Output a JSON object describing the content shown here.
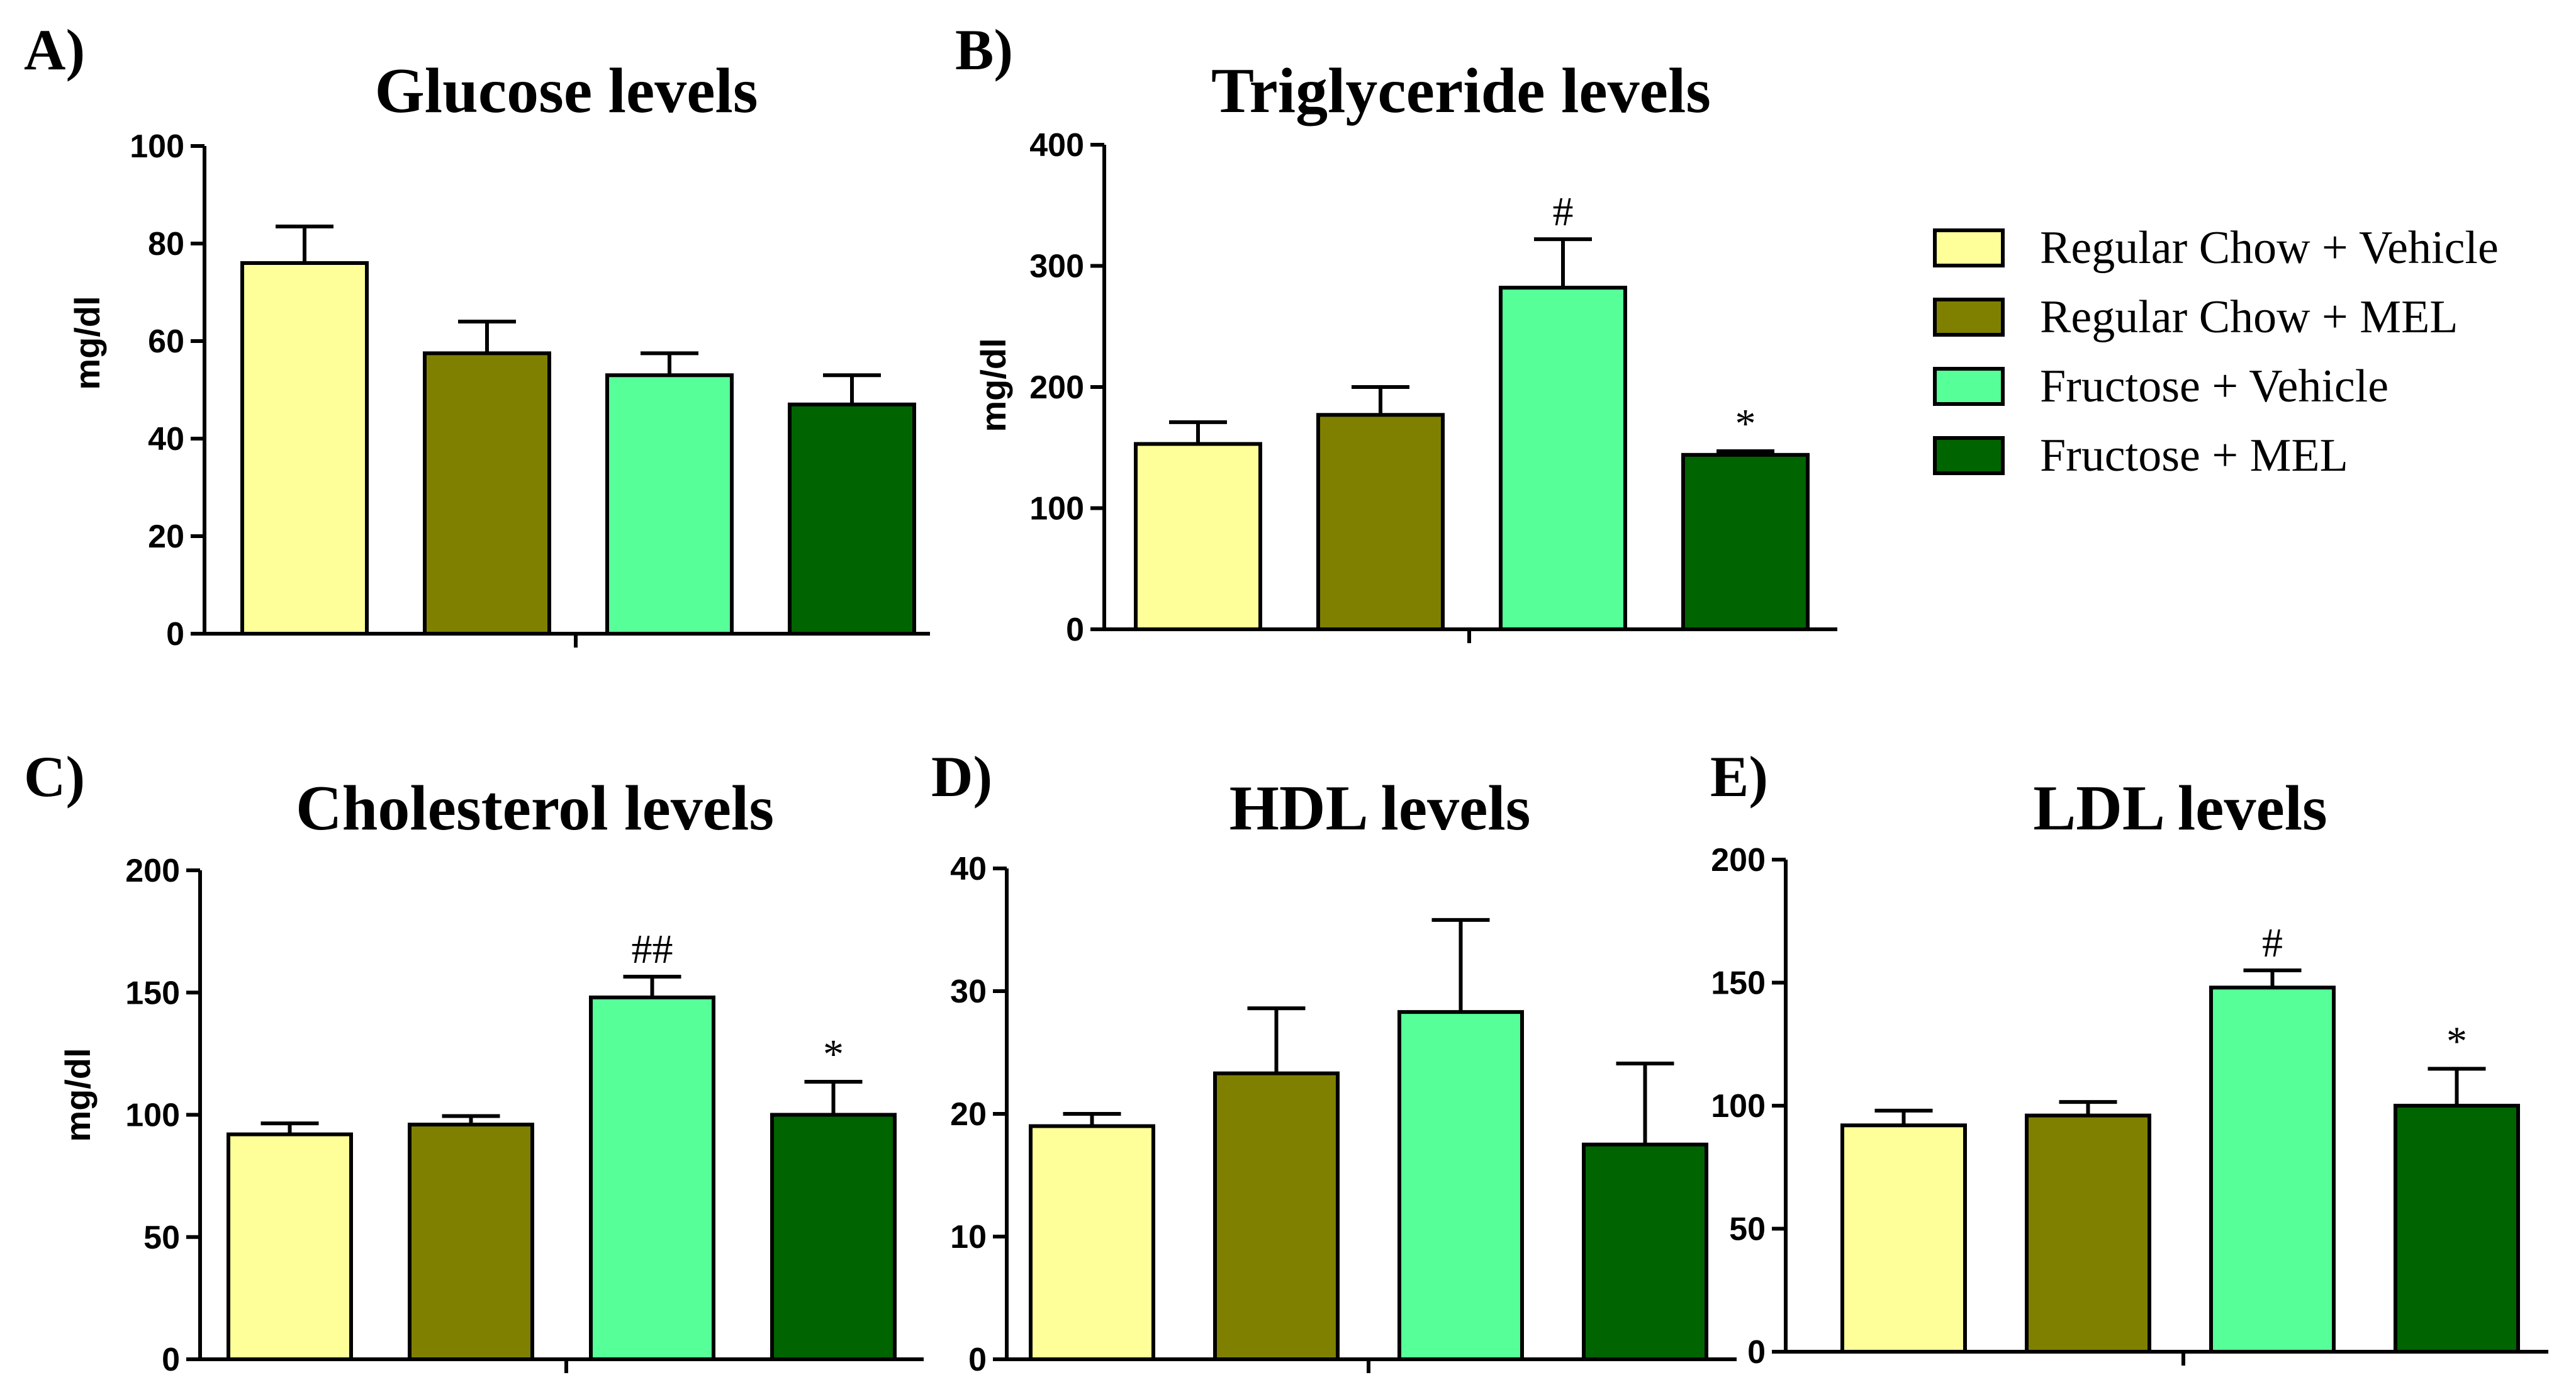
{
  "colors": {
    "regular_chow_vehicle": "#FFFF99",
    "regular_chow_mel": "#808000",
    "fructose_vehicle": "#57FF99",
    "fructose_mel": "#006400",
    "stroke": "#000000"
  },
  "legend": {
    "items": [
      {
        "label": "Regular Chow + Vehicle",
        "color": "#FFFF99"
      },
      {
        "label": "Regular Chow + MEL",
        "color": "#808000"
      },
      {
        "label": "Fructose + Vehicle",
        "color": "#57FF99"
      },
      {
        "label": "Fructose + MEL",
        "color": "#006400"
      }
    ]
  },
  "chart_data": [
    {
      "panel": "A)",
      "type": "bar",
      "title": "Glucose levels",
      "xlabel": "",
      "ylabel": "mg/dl",
      "ylim": [
        0,
        100
      ],
      "yticks": [
        0,
        20,
        40,
        60,
        80,
        100
      ],
      "categories": [
        "Regular Chow + Vehicle",
        "Regular Chow + MEL",
        "Fructose + Vehicle",
        "Fructose + MEL"
      ],
      "values": [
        76,
        57.5,
        53,
        47
      ],
      "errors": [
        7.5,
        6.5,
        4.5,
        6
      ],
      "annotations": [
        "",
        "",
        "",
        ""
      ]
    },
    {
      "panel": "B)",
      "type": "bar",
      "title": "Triglyceride levels",
      "xlabel": "",
      "ylabel": "mg/dl",
      "ylim": [
        0,
        400
      ],
      "yticks": [
        0,
        100,
        200,
        300,
        400
      ],
      "categories": [
        "Regular Chow + Vehicle",
        "Regular Chow + MEL",
        "Fructose + Vehicle",
        "Fructose + MEL"
      ],
      "values": [
        153,
        177,
        282,
        144
      ],
      "errors": [
        18,
        23,
        40,
        3
      ],
      "annotations": [
        "",
        "",
        "#",
        "*"
      ]
    },
    {
      "panel": "C)",
      "type": "bar",
      "title": "Cholesterol levels",
      "xlabel": "",
      "ylabel": "mg/dl",
      "ylim": [
        0,
        200
      ],
      "yticks": [
        0,
        50,
        100,
        150,
        200
      ],
      "categories": [
        "Regular Chow + Vehicle",
        "Regular Chow + MEL",
        "Fructose + Vehicle",
        "Fructose + MEL"
      ],
      "values": [
        92,
        96,
        148,
        100
      ],
      "errors": [
        4.5,
        3.5,
        8.5,
        13.5
      ],
      "annotations": [
        "",
        "",
        "##",
        "*"
      ]
    },
    {
      "panel": "D)",
      "type": "bar",
      "title": "HDL levels",
      "xlabel": "",
      "ylabel": "",
      "ylim": [
        0,
        40
      ],
      "yticks": [
        0,
        10,
        20,
        30,
        40
      ],
      "categories": [
        "Regular Chow + Vehicle",
        "Regular Chow + MEL",
        "Fructose + Vehicle",
        "Fructose + MEL"
      ],
      "values": [
        19,
        23.3,
        28.3,
        17.5
      ],
      "errors": [
        1,
        5.3,
        7.5,
        6.6
      ],
      "annotations": [
        "",
        "",
        "",
        ""
      ]
    },
    {
      "panel": "E)",
      "type": "bar",
      "title": "LDL levels",
      "xlabel": "",
      "ylabel": "",
      "ylim": [
        0,
        200
      ],
      "yticks": [
        0,
        50,
        100,
        150,
        200
      ],
      "categories": [
        "Regular Chow + Vehicle",
        "Regular Chow + MEL",
        "Fructose + Vehicle",
        "Fructose + MEL"
      ],
      "values": [
        92,
        96,
        148,
        100
      ],
      "errors": [
        6,
        5.5,
        7,
        15
      ],
      "annotations": [
        "",
        "",
        "#",
        "*"
      ]
    }
  ]
}
